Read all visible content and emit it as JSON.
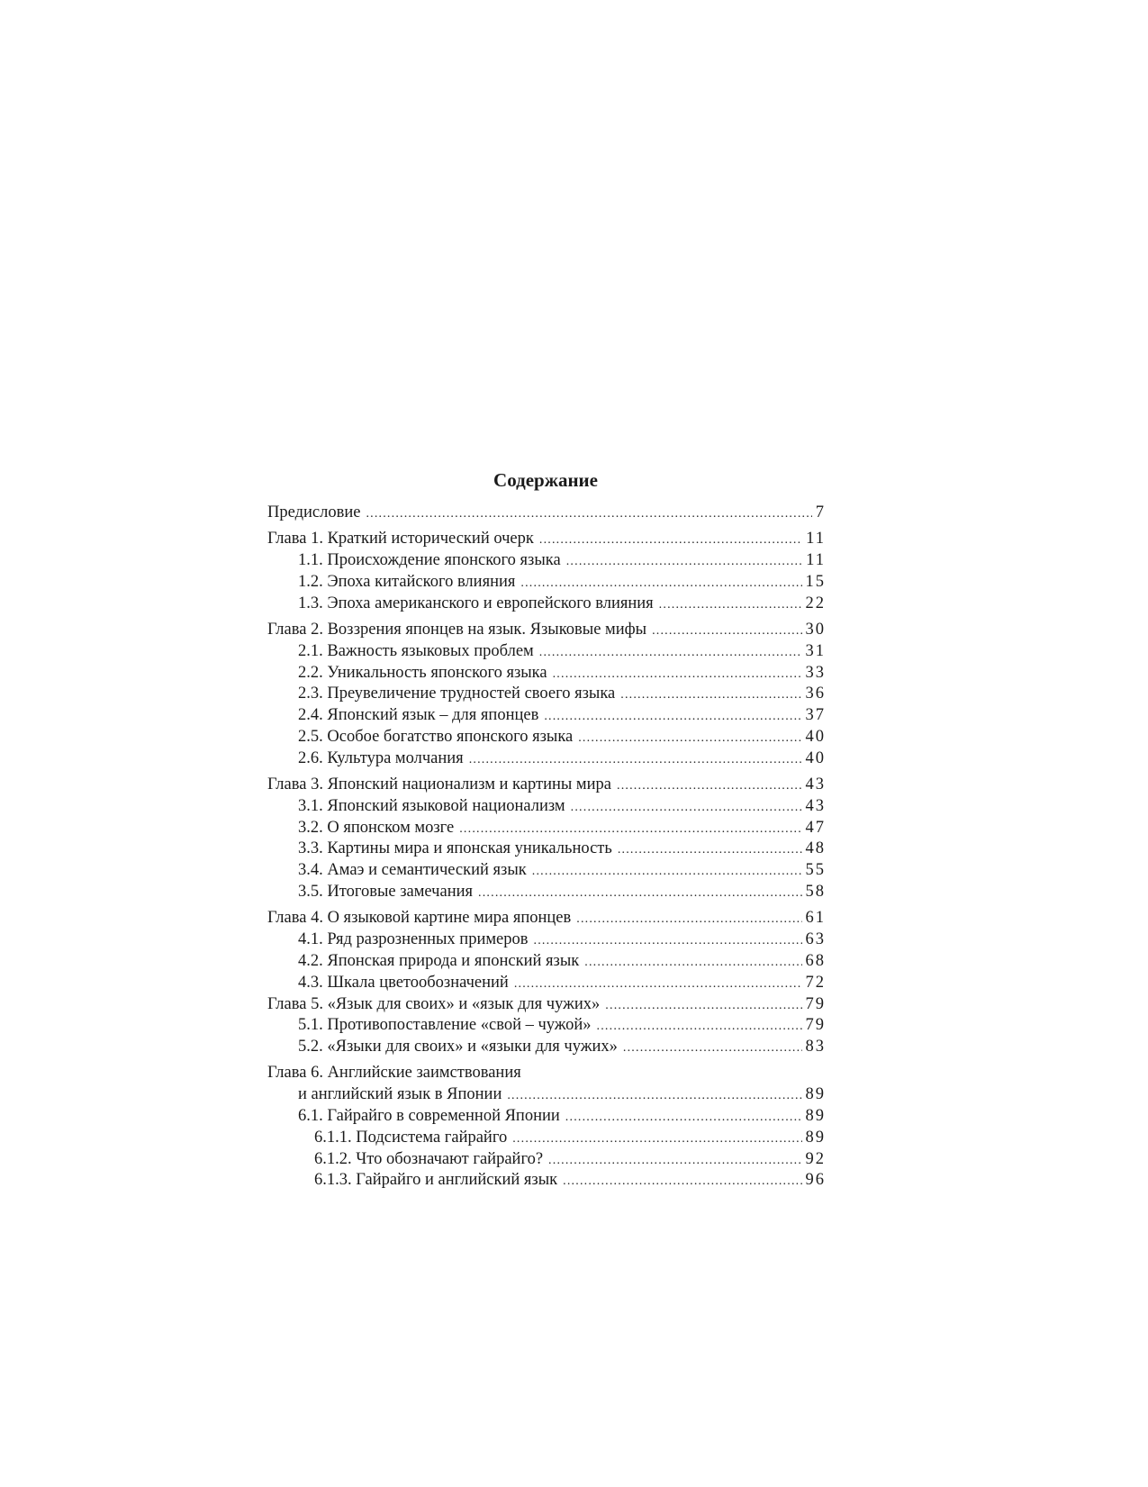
{
  "title": "Содержание",
  "entries": [
    {
      "label": "Предисловие",
      "page": "7"
    },
    {
      "label": "Глава 1. Краткий исторический очерк",
      "page": "11"
    },
    {
      "label": "1.1. Происхождение японского языка",
      "page": "11"
    },
    {
      "label": "1.2. Эпоха китайского влияния",
      "page": "15"
    },
    {
      "label": "1.3. Эпоха американского и европейского влияния",
      "page": "22"
    },
    {
      "label": "Глава 2. Воззрения японцев на язык. Языковые мифы",
      "page": "30"
    },
    {
      "label": "2.1. Важность языковых проблем",
      "page": "31"
    },
    {
      "label": "2.2. Уникальность японского языка",
      "page": "33"
    },
    {
      "label": "2.3. Преувеличение трудностей своего языка",
      "page": "36"
    },
    {
      "label": "2.4. Японский язык – для японцев",
      "page": "37"
    },
    {
      "label": "2.5. Особое богатство японского языка",
      "page": "40"
    },
    {
      "label": "2.6. Культура молчания",
      "page": "40"
    },
    {
      "label": "Глава 3. Японский национализм и картины мира",
      "page": "43"
    },
    {
      "label": "3.1. Японский языковой национализм",
      "page": "43"
    },
    {
      "label": "3.2. О японском мозге",
      "page": "47"
    },
    {
      "label": "3.3. Картины мира и японская уникальность",
      "page": "48"
    },
    {
      "label": "3.4. Амаэ и семантический язык",
      "page": "55"
    },
    {
      "label": "3.5. Итоговые замечания",
      "page": "58"
    },
    {
      "label": "Глава 4. О языковой картине мира японцев",
      "page": "61"
    },
    {
      "label": "4.1. Ряд разрозненных примеров",
      "page": "63"
    },
    {
      "label": "4.2. Японская природа и японский язык",
      "page": "68"
    },
    {
      "label": "4.3. Шкала цветообозначений",
      "page": "72"
    },
    {
      "label": "Глава 5. «Язык для своих» и «язык для чужих»",
      "page": "79"
    },
    {
      "label": "5.1. Противопоставление «свой – чужой»",
      "page": "79"
    },
    {
      "label": "5.2. «Языки для своих» и «языки для чужих»",
      "page": "83"
    },
    {
      "label": "Глава 6. Английские заимствования",
      "page": ""
    },
    {
      "label": "и английский язык в Японии",
      "page": "89"
    },
    {
      "label": "6.1. Гайрайго в современной Японии",
      "page": "89"
    },
    {
      "label": "6.1.1. Подсистема гайрайго",
      "page": "89"
    },
    {
      "label": "6.1.2. Что обозначают гайрайго?",
      "page": "92"
    },
    {
      "label": "6.1.3. Гайрайго и английский язык",
      "page": "96"
    }
  ]
}
